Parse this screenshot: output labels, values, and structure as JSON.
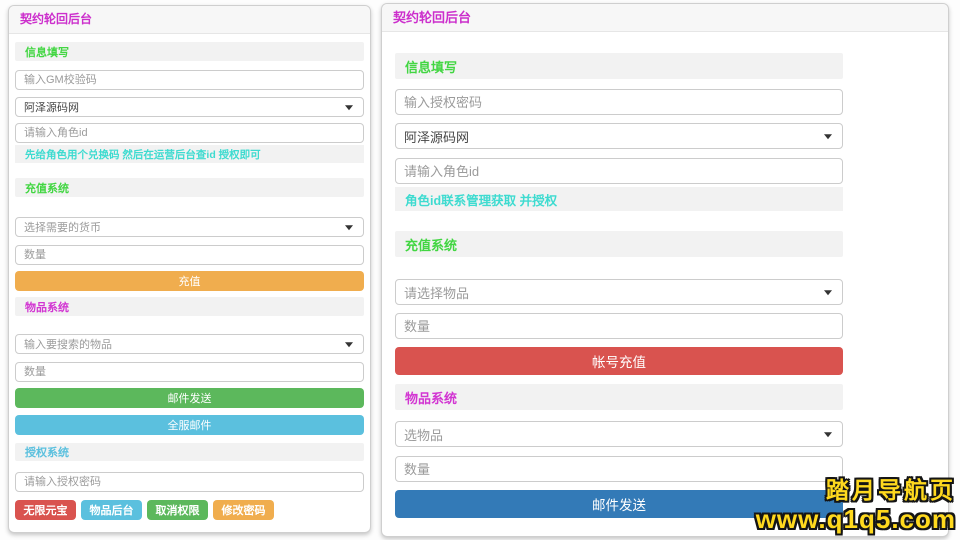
{
  "left_panel": {
    "title": "契约轮回后台",
    "sec_info": "信息填写",
    "gm_code_placeholder": "输入GM校验码",
    "server_select_value": "阿泽源码网",
    "role_id_placeholder": "请输入角色id",
    "tip": "先给角色用个兑换码 然后在运营后台查id 授权即可",
    "sec_recharge": "充值系统",
    "currency_select_placeholder": "选择需要的货币",
    "qty_placeholder": "数量",
    "recharge_button": "充值",
    "sec_item": "物品系统",
    "item_select_placeholder": "输入要搜索的物品",
    "qty2_placeholder": "数量",
    "mail_send_button": "邮件发送",
    "all_server_mail_button": "全服邮件",
    "sec_auth": "授权系统",
    "auth_pwd_placeholder": "请输入授权密码",
    "btn_unlimited_yuanbao": "无限元宝",
    "btn_item_admin": "物品后台",
    "btn_revoke_permission": "取消权限",
    "btn_change_password": "修改密码"
  },
  "right_panel": {
    "title": "契约轮回后台",
    "sec_info": "信息填写",
    "auth_pwd_placeholder": "输入授权密码",
    "server_select_value": "阿泽源码网",
    "role_id_placeholder": "请输入角色id",
    "tip": "角色id联系管理获取 并授权",
    "sec_recharge": "充值系统",
    "item_select_placeholder": "请选择物品",
    "qty_placeholder": "数量",
    "account_recharge_button": "帐号充值",
    "sec_item": "物品系统",
    "item2_select_placeholder": "选物品",
    "qty2_placeholder": "数量",
    "mail_send_button": "邮件发送"
  },
  "watermark": {
    "line1": "踏月导航页",
    "line2": "www.q1q5.com"
  },
  "colors": {
    "title_magenta": "#cc2fcc",
    "section_green": "#42d642",
    "section_magenta": "#d235d2",
    "section_cyan": "#5bc0de",
    "tip_turquoise": "#3edbd0",
    "btn_warning": "#f0ad4e",
    "btn_success": "#5cb85c",
    "btn_info": "#5bc0de",
    "btn_danger": "#d9534f",
    "btn_primary": "#337ab7",
    "watermark_yellow": "#ffd91e"
  }
}
